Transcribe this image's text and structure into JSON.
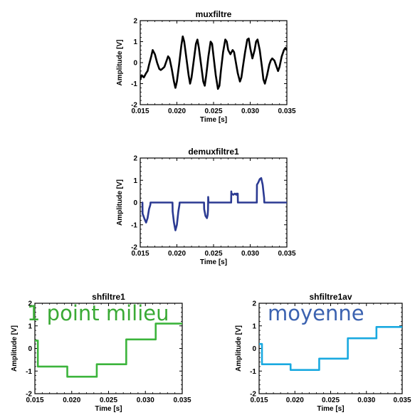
{
  "chart_data": [
    {
      "type": "line",
      "title": "muxfiltre",
      "xlabel": "Time [s]",
      "ylabel": "Amplitude [V]",
      "xlim": [
        0.015,
        0.035
      ],
      "ylim": [
        -2,
        2
      ],
      "xticks": [
        "0.015",
        "0.020",
        "0.025",
        "0.030",
        "0.035"
      ],
      "yticks": [
        "-2",
        "-1",
        "0",
        "1",
        "2"
      ],
      "color": "#000000",
      "series": [
        {
          "x": [
            0.015,
            0.0152,
            0.0155,
            0.0158,
            0.016,
            0.0162,
            0.0165,
            0.0167,
            0.017,
            0.0173,
            0.0176,
            0.0178,
            0.018,
            0.0183,
            0.0185,
            0.0188,
            0.019,
            0.0193,
            0.0196,
            0.0198,
            0.02,
            0.0203,
            0.0206,
            0.0208,
            0.021,
            0.0213,
            0.0216,
            0.0218,
            0.022,
            0.0223,
            0.0226,
            0.0228,
            0.023,
            0.0233,
            0.0236,
            0.0238,
            0.024,
            0.0243,
            0.0246,
            0.0248,
            0.025,
            0.0253,
            0.0256,
            0.0258,
            0.026,
            0.0263,
            0.0266,
            0.0268,
            0.027,
            0.0273,
            0.0276,
            0.0278,
            0.028,
            0.0283,
            0.0286,
            0.0288,
            0.029,
            0.0293,
            0.0296,
            0.0298,
            0.03,
            0.0303,
            0.0306,
            0.0308,
            0.031,
            0.0313,
            0.0316,
            0.0318,
            0.032,
            0.0323,
            0.0326,
            0.0328,
            0.033,
            0.0333,
            0.0336,
            0.0338,
            0.034,
            0.0343,
            0.0346,
            0.0348,
            0.035
          ],
          "y": [
            -0.8,
            -0.6,
            -0.7,
            -0.5,
            -0.4,
            -0.1,
            0.3,
            0.6,
            0.4,
            0.0,
            -0.3,
            -0.35,
            -0.3,
            -0.2,
            0.0,
            0.3,
            0.2,
            -0.3,
            -0.9,
            -1.2,
            -0.9,
            -0.1,
            0.8,
            1.25,
            1.0,
            0.2,
            -0.6,
            -1.0,
            -0.7,
            0.1,
            0.9,
            1.1,
            0.7,
            -0.1,
            -0.9,
            -1.1,
            -0.6,
            0.3,
            1.0,
            0.9,
            0.3,
            -0.6,
            -1.25,
            -1.1,
            -0.4,
            0.5,
            1.1,
            1.0,
            0.6,
            0.4,
            0.6,
            0.5,
            0.1,
            -0.5,
            -0.9,
            -0.7,
            -0.2,
            0.5,
            1.1,
            1.15,
            0.7,
            0.2,
            0.6,
            1.0,
            1.1,
            0.6,
            -0.2,
            -0.8,
            -1.0,
            -0.6,
            -0.1,
            0.1,
            0.2,
            0.1,
            -0.2,
            -0.4,
            -0.2,
            0.3,
            0.6,
            0.7,
            0.6
          ]
        }
      ]
    },
    {
      "type": "line",
      "title": "demuxfiltre1",
      "xlabel": "Time [s]",
      "ylabel": "Amplitude [V]",
      "xlim": [
        0.015,
        0.035
      ],
      "ylim": [
        -2,
        2
      ],
      "xticks": [
        "0.015",
        "0.020",
        "0.025",
        "0.030",
        "0.035"
      ],
      "yticks": [
        "-2",
        "-1",
        "0",
        "1",
        "2"
      ],
      "color": "#2b3a92",
      "series": [
        {
          "x": [
            0.0153,
            0.01532,
            0.0156,
            0.0158,
            0.016,
            0.0162,
            0.01638,
            0.0164,
            0.0194,
            0.01942,
            0.0196,
            0.0198,
            0.02,
            0.0202,
            0.02035,
            0.02037,
            0.0237,
            0.02372,
            0.0239,
            0.0241,
            0.0242,
            0.02425,
            0.02427,
            0.02429,
            0.02431,
            0.0274,
            0.02742,
            0.02745,
            0.02748,
            0.0277,
            0.0279,
            0.0281,
            0.02812,
            0.0283,
            0.02832,
            0.0309,
            0.03092,
            0.0311,
            0.0313,
            0.0315,
            0.0317,
            0.0319,
            0.03192,
            0.035
          ],
          "y": [
            0,
            -0.5,
            -0.75,
            -0.9,
            -0.7,
            -0.3,
            -0.1,
            0,
            0,
            -0.4,
            -0.9,
            -1.25,
            -1.0,
            -0.4,
            -0.1,
            0,
            0,
            -0.3,
            -0.6,
            -0.7,
            -0.55,
            -0.3,
            0.25,
            0.15,
            0,
            0,
            0.5,
            0.35,
            0.4,
            0.35,
            0.4,
            0.35,
            0.4,
            0.4,
            0,
            0,
            0.8,
            0.9,
            1.05,
            1.1,
            0.8,
            0.2,
            0,
            0
          ]
        }
      ]
    },
    {
      "type": "line",
      "title": "shfiltre1",
      "xlabel": "Time [s]",
      "ylabel": "Amplitude [V]",
      "xlim": [
        0.015,
        0.035
      ],
      "ylim": [
        -2,
        2
      ],
      "xticks": [
        "0.015",
        "0.020",
        "0.025",
        "0.030",
        "0.035"
      ],
      "yticks": [
        "-2",
        "-1",
        "0",
        "1",
        "2"
      ],
      "color": "#3cb43c",
      "annotation": "1 point milieu",
      "annotation_color": "#3aaa35",
      "series": [
        {
          "x": [
            0.015,
            0.0154,
            0.0154,
            0.0194,
            0.0194,
            0.0234,
            0.0234,
            0.0274,
            0.0274,
            0.0314,
            0.0314,
            0.035
          ],
          "y": [
            0.35,
            0.35,
            -0.8,
            -0.8,
            -1.25,
            -1.25,
            -0.7,
            -0.7,
            0.4,
            0.4,
            1.1,
            1.1
          ]
        }
      ]
    },
    {
      "type": "line",
      "title": "shfiltre1av",
      "xlabel": "Time [s]",
      "ylabel": "Amplitude [V]",
      "xlim": [
        0.015,
        0.035
      ],
      "ylim": [
        -2,
        2
      ],
      "xticks": [
        "0.015",
        "0.020",
        "0.025",
        "0.030",
        "0.035"
      ],
      "yticks": [
        "-2",
        "-1",
        "0",
        "1",
        "2"
      ],
      "color": "#1aa9e0",
      "annotation": "moyenne",
      "annotation_color": "#3b62b0",
      "series": [
        {
          "x": [
            0.015,
            0.0154,
            0.0154,
            0.0194,
            0.0194,
            0.0234,
            0.0234,
            0.0274,
            0.0274,
            0.0314,
            0.0314,
            0.035
          ],
          "y": [
            0.2,
            0.2,
            -0.7,
            -0.7,
            -0.95,
            -0.95,
            -0.45,
            -0.45,
            0.45,
            0.45,
            0.95,
            0.95
          ]
        }
      ]
    }
  ]
}
